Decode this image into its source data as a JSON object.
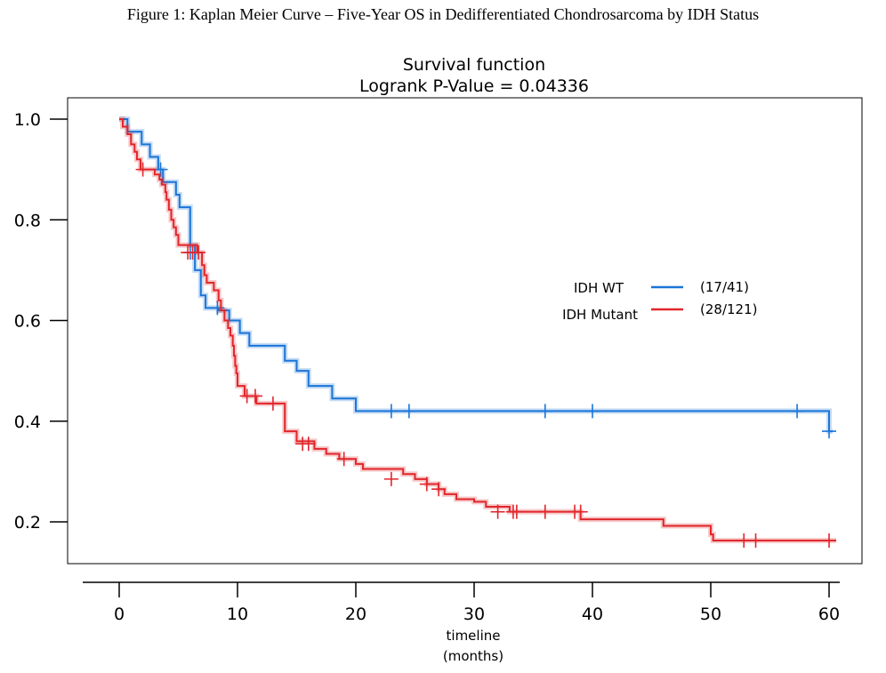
{
  "figure_caption": "Figure 1: Kaplan Meier Curve – Five-Year OS in Dedifferentiated Chondrosarcoma by IDH Status",
  "chart_data": {
    "type": "line",
    "title": "Survival function",
    "subtitle": "Logrank P-Value = 0.04336",
    "xlabel_line1": "timeline",
    "xlabel_line2": "(months)",
    "ylabel": "",
    "xlim": [
      -3,
      61
    ],
    "ylim": [
      0.1,
      1.03
    ],
    "x_ticks": [
      0,
      10,
      20,
      30,
      40,
      50,
      60
    ],
    "x_tick_labels": [
      "0",
      "10",
      "20",
      "30",
      "40",
      "50",
      "60"
    ],
    "y_ticks": [
      0.2,
      0.4,
      0.6,
      0.8,
      1.0
    ],
    "y_tick_labels": [
      "0.2",
      "0.4",
      "0.6",
      "0.8",
      "1.0"
    ],
    "grid": false,
    "legend_position": "center-right",
    "series": [
      {
        "name": "IDH WT",
        "counts": "(17/41)",
        "color": "#1a75d8",
        "steps": [
          [
            0,
            1.0
          ],
          [
            0.7,
            0.975
          ],
          [
            1.9,
            0.95
          ],
          [
            2.6,
            0.925
          ],
          [
            3.3,
            0.9
          ],
          [
            3.7,
            0.875
          ],
          [
            4.8,
            0.85
          ],
          [
            5.1,
            0.825
          ],
          [
            6.0,
            0.75
          ],
          [
            6.4,
            0.7
          ],
          [
            6.9,
            0.65
          ],
          [
            7.3,
            0.625
          ],
          [
            8.4,
            0.62
          ],
          [
            9.3,
            0.6
          ],
          [
            10.2,
            0.575
          ],
          [
            11.0,
            0.55
          ],
          [
            14.0,
            0.52
          ],
          [
            15.0,
            0.5
          ],
          [
            16.0,
            0.47
          ],
          [
            18.0,
            0.445
          ],
          [
            20.0,
            0.42
          ],
          [
            60.0,
            0.38
          ]
        ],
        "end_x": 60.3,
        "censors": [
          [
            3.5,
            0.9
          ],
          [
            6.0,
            0.735
          ],
          [
            8.3,
            0.625
          ],
          [
            23.0,
            0.42
          ],
          [
            24.5,
            0.42
          ],
          [
            36.0,
            0.42
          ],
          [
            40.0,
            0.42
          ],
          [
            57.3,
            0.42
          ],
          [
            60.0,
            0.38
          ]
        ]
      },
      {
        "name": "IDH Mutant",
        "counts": "(28/121)",
        "color": "#e0262b",
        "steps": [
          [
            0,
            1.0
          ],
          [
            0.3,
            0.985
          ],
          [
            0.7,
            0.97
          ],
          [
            1.0,
            0.95
          ],
          [
            1.3,
            0.935
          ],
          [
            1.5,
            0.92
          ],
          [
            1.8,
            0.9
          ],
          [
            3.0,
            0.89
          ],
          [
            3.4,
            0.88
          ],
          [
            3.6,
            0.87
          ],
          [
            3.9,
            0.855
          ],
          [
            4.0,
            0.84
          ],
          [
            4.2,
            0.82
          ],
          [
            4.4,
            0.8
          ],
          [
            4.6,
            0.785
          ],
          [
            4.8,
            0.77
          ],
          [
            5.0,
            0.75
          ],
          [
            6.6,
            0.735
          ],
          [
            7.0,
            0.71
          ],
          [
            7.2,
            0.69
          ],
          [
            7.4,
            0.675
          ],
          [
            8.0,
            0.66
          ],
          [
            8.4,
            0.64
          ],
          [
            8.6,
            0.62
          ],
          [
            8.9,
            0.6
          ],
          [
            9.2,
            0.585
          ],
          [
            9.4,
            0.57
          ],
          [
            9.6,
            0.55
          ],
          [
            9.7,
            0.53
          ],
          [
            9.8,
            0.51
          ],
          [
            9.9,
            0.495
          ],
          [
            10.0,
            0.47
          ],
          [
            10.6,
            0.45
          ],
          [
            11.6,
            0.435
          ],
          [
            14.0,
            0.38
          ],
          [
            15.0,
            0.36
          ],
          [
            16.5,
            0.345
          ],
          [
            17.5,
            0.335
          ],
          [
            18.6,
            0.325
          ],
          [
            20.0,
            0.315
          ],
          [
            20.6,
            0.305
          ],
          [
            22.0,
            0.305
          ],
          [
            24.0,
            0.295
          ],
          [
            25.0,
            0.285
          ],
          [
            26.0,
            0.275
          ],
          [
            27.0,
            0.265
          ],
          [
            27.5,
            0.255
          ],
          [
            28.5,
            0.245
          ],
          [
            30.0,
            0.24
          ],
          [
            31.0,
            0.23
          ],
          [
            33.0,
            0.22
          ],
          [
            39.0,
            0.205
          ],
          [
            46.0,
            0.192
          ],
          [
            50.0,
            0.175
          ],
          [
            50.2,
            0.163
          ]
        ],
        "end_x": 60.6,
        "censors": [
          [
            2.0,
            0.9
          ],
          [
            5.8,
            0.735
          ],
          [
            6.2,
            0.735
          ],
          [
            6.7,
            0.735
          ],
          [
            10.8,
            0.45
          ],
          [
            11.5,
            0.45
          ],
          [
            13.0,
            0.435
          ],
          [
            15.5,
            0.355
          ],
          [
            16.0,
            0.355
          ],
          [
            19.0,
            0.325
          ],
          [
            23.0,
            0.285
          ],
          [
            26.0,
            0.275
          ],
          [
            27.0,
            0.265
          ],
          [
            32.0,
            0.22
          ],
          [
            33.3,
            0.22
          ],
          [
            33.6,
            0.22
          ],
          [
            36.0,
            0.22
          ],
          [
            38.5,
            0.22
          ],
          [
            39.0,
            0.22
          ],
          [
            52.8,
            0.163
          ],
          [
            53.8,
            0.163
          ],
          [
            60.0,
            0.163
          ]
        ]
      }
    ]
  }
}
